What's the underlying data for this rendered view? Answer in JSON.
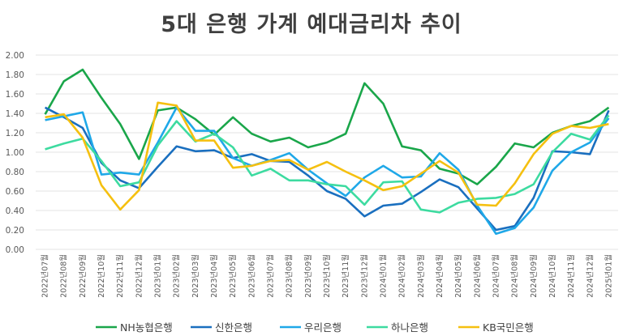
{
  "chart_data": {
    "type": "line",
    "title": "5대 은행 가계 예대금리차 추이",
    "xlabel": "",
    "ylabel": "",
    "ylim": [
      0,
      2
    ],
    "yticks": [
      "0.00",
      "0.20",
      "0.40",
      "0.60",
      "0.80",
      "1.00",
      "1.20",
      "1.40",
      "1.60",
      "1.80",
      "2.00"
    ],
    "grid": true,
    "legend": "bottom",
    "categories": [
      "2022년07월",
      "2022년08월",
      "2022년09월",
      "2022년10월",
      "2022년11월",
      "2022년12월",
      "2023년01월",
      "2023년02월",
      "2023년03월",
      "2023년04월",
      "2023년05월",
      "2023년06월",
      "2023년07월",
      "2023년08월",
      "2023년09월",
      "2023년10월",
      "2023년11월",
      "2023년12월",
      "2024년01월",
      "2024년02월",
      "2024년03월",
      "2024년04월",
      "2024년05월",
      "2024년06월",
      "2024년07월",
      "2024년08월",
      "2024년09월",
      "2024년10월",
      "2024년11월",
      "2024년12월",
      "2025년01월"
    ],
    "series": [
      {
        "name": "NH농협은행",
        "color": "#1aa64a",
        "values": [
          1.39,
          1.73,
          1.85,
          1.56,
          1.29,
          0.93,
          1.43,
          1.46,
          1.34,
          1.18,
          1.36,
          1.19,
          1.11,
          1.15,
          1.05,
          1.1,
          1.19,
          1.71,
          1.5,
          1.06,
          1.02,
          0.83,
          0.78,
          0.67,
          0.85,
          1.09,
          1.05,
          1.2,
          1.27,
          1.32,
          1.46
        ]
      },
      {
        "name": "신한은행",
        "color": "#1a6fbf",
        "values": [
          1.46,
          1.36,
          1.25,
          0.89,
          0.71,
          0.63,
          0.85,
          1.06,
          1.01,
          1.02,
          0.94,
          0.98,
          0.91,
          0.9,
          0.76,
          0.6,
          0.52,
          0.34,
          0.45,
          0.47,
          0.59,
          0.72,
          0.64,
          0.42,
          0.2,
          0.24,
          0.53,
          1.01,
          1.0,
          0.98,
          1.43
        ]
      },
      {
        "name": "우리은행",
        "color": "#1fa8e8",
        "values": [
          1.33,
          1.37,
          1.41,
          0.77,
          0.79,
          0.77,
          1.1,
          1.46,
          1.22,
          1.22,
          0.94,
          0.86,
          0.92,
          0.99,
          0.82,
          0.68,
          0.55,
          0.74,
          0.86,
          0.74,
          0.75,
          0.99,
          0.82,
          0.45,
          0.16,
          0.22,
          0.43,
          0.81,
          1.0,
          1.1,
          1.35
        ]
      },
      {
        "name": "하나은행",
        "color": "#3ddba0",
        "values": [
          1.03,
          1.09,
          1.14,
          0.91,
          0.65,
          0.69,
          1.07,
          1.32,
          1.11,
          1.19,
          1.05,
          0.76,
          0.83,
          0.71,
          0.71,
          0.67,
          0.65,
          0.46,
          0.69,
          0.7,
          0.41,
          0.38,
          0.48,
          0.52,
          0.53,
          0.57,
          0.67,
          1.0,
          1.19,
          1.13,
          1.38
        ]
      },
      {
        "name": "KB국민은행",
        "color": "#f5c010",
        "values": [
          1.36,
          1.39,
          1.15,
          0.66,
          0.41,
          0.61,
          1.51,
          1.48,
          1.12,
          1.12,
          0.84,
          0.86,
          0.91,
          0.92,
          0.82,
          0.9,
          0.8,
          0.71,
          0.61,
          0.65,
          0.78,
          0.91,
          0.79,
          0.46,
          0.45,
          0.68,
          0.98,
          1.19,
          1.27,
          1.25,
          1.29
        ]
      }
    ]
  }
}
